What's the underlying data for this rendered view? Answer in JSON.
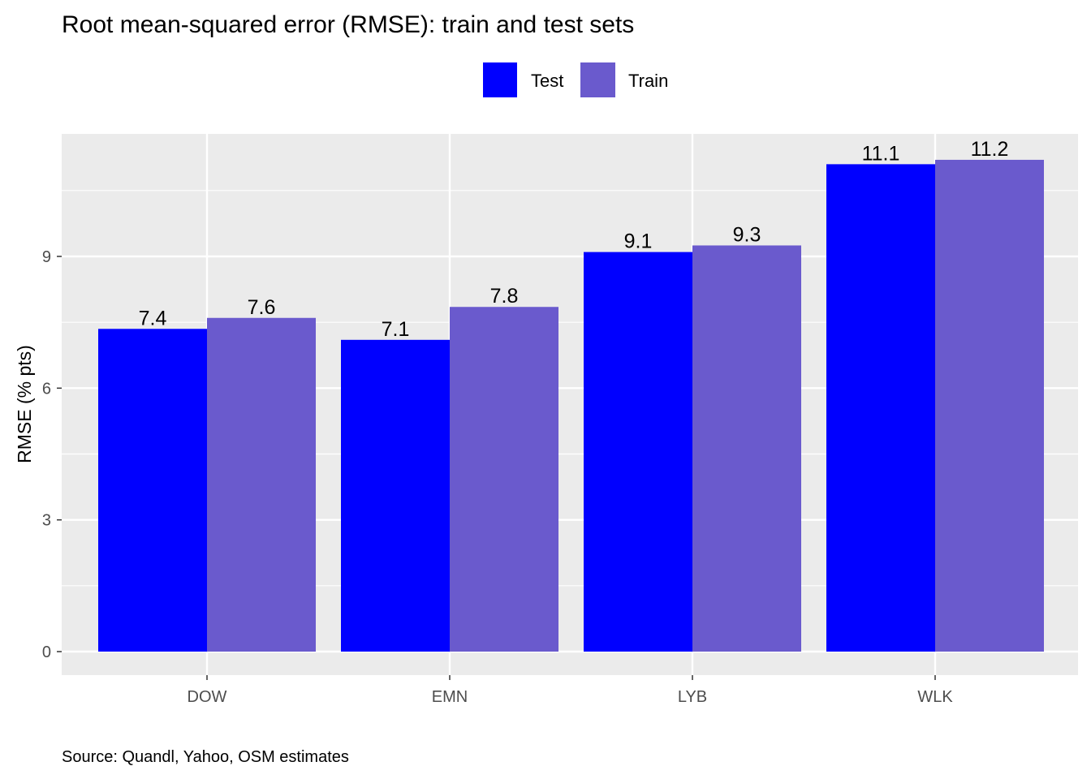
{
  "chart_data": {
    "type": "bar",
    "title": "Root mean-squared error (RMSE): train and test sets",
    "caption": "Source: Quandl, Yahoo, OSM estimates",
    "xlabel": "",
    "ylabel": "RMSE (% pts)",
    "categories": [
      "DOW",
      "EMN",
      "LYB",
      "WLK"
    ],
    "series": [
      {
        "name": "Test",
        "color": "#0000ff",
        "values": [
          7.35,
          7.1,
          9.1,
          11.1
        ],
        "labels": [
          "7.4",
          "7.1",
          "9.1",
          "11.1"
        ]
      },
      {
        "name": "Train",
        "color": "#6a5acd",
        "values": [
          7.6,
          7.85,
          9.25,
          11.2
        ],
        "labels": [
          "7.6",
          "7.8",
          "9.3",
          "11.2"
        ]
      }
    ],
    "yticks": [
      0,
      3,
      6,
      9
    ],
    "ylim": [
      -0.55,
      11.75
    ],
    "grid": true,
    "legend_position": "top",
    "panel_background": "#ebebeb"
  }
}
